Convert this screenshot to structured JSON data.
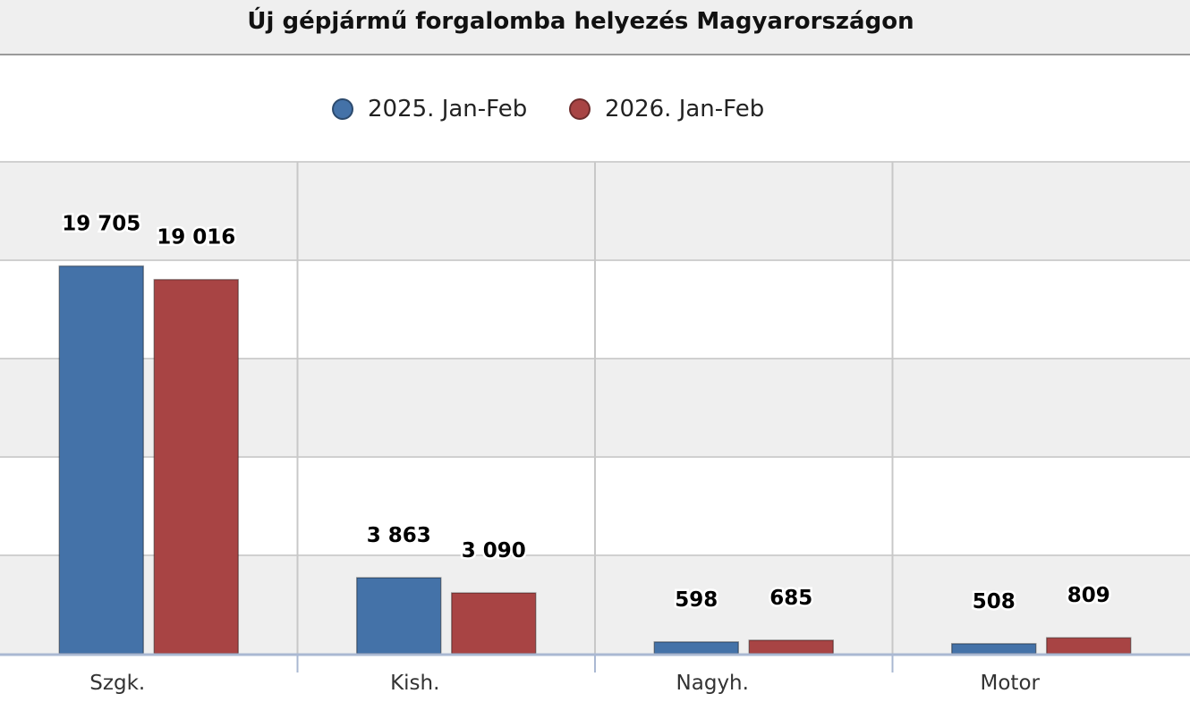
{
  "chart_data": {
    "type": "bar",
    "title": "Új gépjármű forgalomba helyezés Magyarországon",
    "categories": [
      "Szgk.",
      "Kish.",
      "Nagyh.",
      "Motor"
    ],
    "series": [
      {
        "name": "2025. Jan-Feb",
        "color": "#4472a8",
        "values": [
          19705,
          3863,
          598,
          508
        ],
        "value_labels": [
          "19 705",
          "3 863",
          "598",
          "508"
        ]
      },
      {
        "name": "2026. Jan-Feb",
        "color": "#a84444",
        "values": [
          19016,
          3090,
          685,
          809
        ],
        "value_labels": [
          "19 016",
          "3 090",
          "685",
          "809"
        ]
      }
    ],
    "ylim": [
      0,
      25000
    ],
    "y_grid_step": 5000,
    "y_tick_labels_shown": false,
    "grid": true,
    "legend_position": "top-center"
  }
}
